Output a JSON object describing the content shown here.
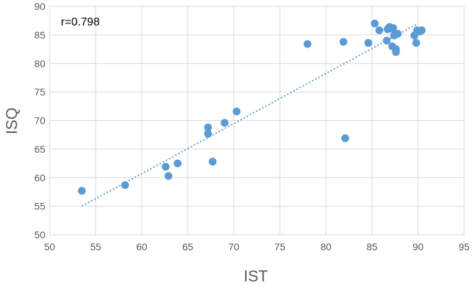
{
  "chart_data": {
    "type": "scatter",
    "title": "",
    "xlabel": "IST",
    "ylabel": "ISQ",
    "xlim": [
      50,
      95
    ],
    "ylim": [
      50,
      90
    ],
    "x_ticks": [
      50,
      55,
      60,
      65,
      70,
      75,
      80,
      85,
      90,
      95
    ],
    "y_ticks": [
      50,
      55,
      60,
      65,
      70,
      75,
      80,
      85,
      90
    ],
    "grid": true,
    "legend": "none",
    "annotation": "r=0.798",
    "point_color": "#5b9bd5",
    "trendline": {
      "style": "dotted",
      "color": "#5b9bd5",
      "from": [
        53.5,
        55.0
      ],
      "to": [
        90.0,
        87.0
      ]
    },
    "series": [
      {
        "points": [
          {
            "x": 53.5,
            "y": 57.7
          },
          {
            "x": 58.2,
            "y": 58.7
          },
          {
            "x": 62.6,
            "y": 61.9
          },
          {
            "x": 62.9,
            "y": 60.3
          },
          {
            "x": 63.9,
            "y": 62.5
          },
          {
            "x": 67.2,
            "y": 68.8
          },
          {
            "x": 67.2,
            "y": 67.7
          },
          {
            "x": 67.7,
            "y": 62.8
          },
          {
            "x": 69.0,
            "y": 69.6
          },
          {
            "x": 70.3,
            "y": 71.6
          },
          {
            "x": 78.0,
            "y": 83.4
          },
          {
            "x": 81.9,
            "y": 83.8
          },
          {
            "x": 82.1,
            "y": 66.9
          },
          {
            "x": 84.6,
            "y": 83.6
          },
          {
            "x": 85.3,
            "y": 87.0
          },
          {
            "x": 85.8,
            "y": 85.8
          },
          {
            "x": 86.6,
            "y": 84.0
          },
          {
            "x": 86.7,
            "y": 86.0
          },
          {
            "x": 86.9,
            "y": 86.4
          },
          {
            "x": 87.0,
            "y": 86.1
          },
          {
            "x": 87.2,
            "y": 83.0
          },
          {
            "x": 87.3,
            "y": 86.2
          },
          {
            "x": 87.4,
            "y": 84.9
          },
          {
            "x": 87.6,
            "y": 82.5
          },
          {
            "x": 87.6,
            "y": 82.0
          },
          {
            "x": 87.8,
            "y": 85.2
          },
          {
            "x": 89.6,
            "y": 84.9
          },
          {
            "x": 89.8,
            "y": 83.6
          },
          {
            "x": 89.9,
            "y": 85.8
          },
          {
            "x": 90.2,
            "y": 85.6
          },
          {
            "x": 90.4,
            "y": 85.8
          }
        ]
      }
    ]
  }
}
